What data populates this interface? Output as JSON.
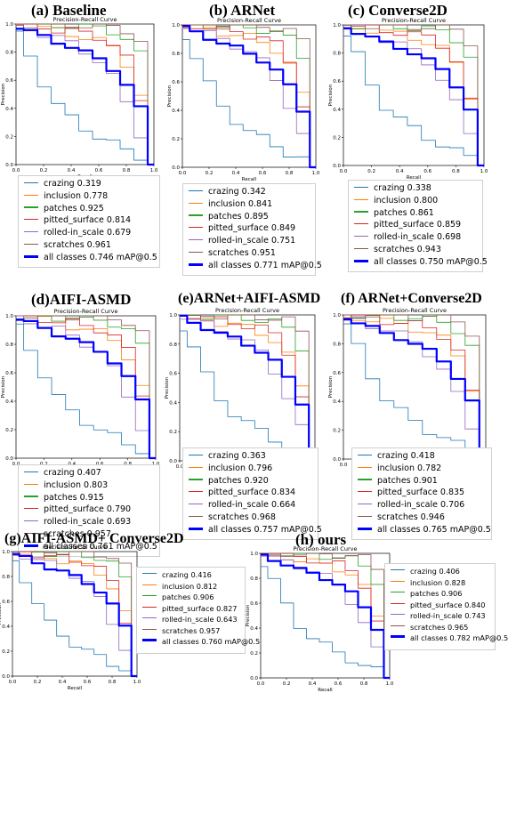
{
  "curve_title": "Precision-Recall Curve",
  "xlabel": "Recall",
  "ylabel": "Precision",
  "xticks": [
    "0.0",
    "0.2",
    "0.4",
    "0.6",
    "0.8",
    "1.0"
  ],
  "yticks": [
    "0.0",
    "0.2",
    "0.4",
    "0.6",
    "0.8",
    "1.0"
  ],
  "colors": {
    "crazing": "#1f77b4",
    "inclusion": "#ff7f0e",
    "patches": "#2ca02c",
    "pitted_surface": "#d62728",
    "rolled-in_scale": "#9467bd",
    "scratches": "#8c564b",
    "all": "#0000ff"
  },
  "panels": [
    {
      "title": "(a) Baseline",
      "legend": [
        {
          "key": "crazing",
          "label": "crazing 0.319"
        },
        {
          "key": "inclusion",
          "label": "inclusion 0.778"
        },
        {
          "key": "patches",
          "label": "patches 0.925"
        },
        {
          "key": "pitted_surface",
          "label": "pitted_surface 0.814"
        },
        {
          "key": "rolled-in_scale",
          "label": "rolled-in_scale 0.679"
        },
        {
          "key": "scratches",
          "label": "scratches 0.961"
        },
        {
          "key": "all",
          "label": "all classes 0.746 mAP@0.5"
        }
      ]
    },
    {
      "title": "(b) ARNet",
      "legend": [
        {
          "key": "crazing",
          "label": "crazing 0.342"
        },
        {
          "key": "inclusion",
          "label": "inclusion 0.841"
        },
        {
          "key": "patches",
          "label": "patches 0.895"
        },
        {
          "key": "pitted_surface",
          "label": "pitted_surface 0.849"
        },
        {
          "key": "rolled-in_scale",
          "label": "rolled-in_scale 0.751"
        },
        {
          "key": "scratches",
          "label": "scratches 0.951"
        },
        {
          "key": "all",
          "label": "all classes 0.771 mAP@0.5"
        }
      ]
    },
    {
      "title": "(c) Converse2D",
      "legend": [
        {
          "key": "crazing",
          "label": "crazing 0.338"
        },
        {
          "key": "inclusion",
          "label": "inclusion 0.800"
        },
        {
          "key": "patches",
          "label": "patches 0.861"
        },
        {
          "key": "pitted_surface",
          "label": "pitted_surface 0.859"
        },
        {
          "key": "rolled-in_scale",
          "label": "rolled-in_scale 0.698"
        },
        {
          "key": "scratches",
          "label": "scratches 0.943"
        },
        {
          "key": "all",
          "label": "all classes 0.750 mAP@0.5"
        }
      ]
    },
    {
      "title": "(d)AIFI-ASMD",
      "legend": [
        {
          "key": "crazing",
          "label": "crazing 0.407"
        },
        {
          "key": "inclusion",
          "label": "inclusion 0.803"
        },
        {
          "key": "patches",
          "label": "patches 0.915"
        },
        {
          "key": "pitted_surface",
          "label": "pitted_surface 0.790"
        },
        {
          "key": "rolled-in_scale",
          "label": "rolled-in_scale 0.693"
        },
        {
          "key": "scratches",
          "label": "scratches 0.957"
        },
        {
          "key": "all",
          "label": "all classes 0.761 mAP@0.5"
        }
      ]
    },
    {
      "title": "(e)ARNet+AIFI-ASMD",
      "legend": [
        {
          "key": "crazing",
          "label": "crazing 0.363"
        },
        {
          "key": "inclusion",
          "label": "inclusion 0.796"
        },
        {
          "key": "patches",
          "label": "patches 0.920"
        },
        {
          "key": "pitted_surface",
          "label": "pitted_surface 0.834"
        },
        {
          "key": "rolled-in_scale",
          "label": "rolled-in_scale 0.664"
        },
        {
          "key": "scratches",
          "label": "scratches 0.968"
        },
        {
          "key": "all",
          "label": "all classes 0.757 mAP@0.5"
        }
      ]
    },
    {
      "title": "(f) ARNet+Converse2D",
      "legend": [
        {
          "key": "crazing",
          "label": "crazing 0.418"
        },
        {
          "key": "inclusion",
          "label": "inclusion 0.782"
        },
        {
          "key": "patches",
          "label": "patches 0.901"
        },
        {
          "key": "pitted_surface",
          "label": "pitted_surface 0.835"
        },
        {
          "key": "rolled-in_scale",
          "label": "rolled-in_scale 0.706"
        },
        {
          "key": "scratches",
          "label": "scratches 0.946"
        },
        {
          "key": "all",
          "label": "all classes 0.765 mAP@0.5"
        }
      ]
    },
    {
      "title": "(g)AIFI-ASMD+ Converse2D",
      "legend": [
        {
          "key": "crazing",
          "label": "crazing 0.416"
        },
        {
          "key": "inclusion",
          "label": "inclusion 0.812"
        },
        {
          "key": "patches",
          "label": "patches 0.906"
        },
        {
          "key": "pitted_surface",
          "label": "pitted_surface 0.827"
        },
        {
          "key": "rolled-in_scale",
          "label": "rolled-in_scale 0.643"
        },
        {
          "key": "scratches",
          "label": "scratches 0.957"
        },
        {
          "key": "all",
          "label": "all classes 0.760 mAP@0.5"
        }
      ]
    },
    {
      "title": "(h) ours",
      "legend": [
        {
          "key": "crazing",
          "label": "crazing 0.406"
        },
        {
          "key": "inclusion",
          "label": "inclusion 0.828"
        },
        {
          "key": "patches",
          "label": "patches 0.906"
        },
        {
          "key": "pitted_surface",
          "label": "pitted_surface 0.840"
        },
        {
          "key": "rolled-in_scale",
          "label": "rolled-in_scale 0.743"
        },
        {
          "key": "scratches",
          "label": "scratches 0.965"
        },
        {
          "key": "all",
          "label": "all classes 0.782 mAP@0.5"
        }
      ]
    }
  ],
  "chart_data": {
    "type": "line",
    "description_note": "",
    "xlim": [
      0,
      1
    ],
    "ylim": [
      0,
      1
    ],
    "x": [
      0.0,
      0.1,
      0.2,
      0.3,
      0.4,
      0.5,
      0.6,
      0.7,
      0.8,
      0.9,
      1.0
    ],
    "series_shapes": [
      {
        "name": "crazing",
        "values": [
          0.92,
          0.78,
          0.58,
          0.42,
          0.33,
          0.26,
          0.2,
          0.15,
          0.1,
          0.06,
          0.0
        ]
      },
      {
        "name": "inclusion",
        "values": [
          1.0,
          0.98,
          0.97,
          0.95,
          0.93,
          0.91,
          0.88,
          0.83,
          0.72,
          0.5,
          0.0
        ]
      },
      {
        "name": "patches",
        "values": [
          1.0,
          1.0,
          1.0,
          0.99,
          0.99,
          0.98,
          0.97,
          0.95,
          0.9,
          0.78,
          0.0
        ]
      },
      {
        "name": "pitted_surface",
        "values": [
          1.0,
          1.0,
          0.98,
          0.96,
          0.95,
          0.93,
          0.91,
          0.86,
          0.75,
          0.45,
          0.0
        ]
      },
      {
        "name": "rolled-in_scale",
        "values": [
          1.0,
          0.97,
          0.93,
          0.9,
          0.86,
          0.81,
          0.74,
          0.62,
          0.44,
          0.22,
          0.0
        ]
      },
      {
        "name": "scratches",
        "values": [
          1.0,
          1.0,
          1.0,
          1.0,
          1.0,
          0.99,
          0.99,
          0.98,
          0.96,
          0.88,
          0.0
        ]
      },
      {
        "name": "all classes",
        "values": [
          0.98,
          0.95,
          0.91,
          0.87,
          0.84,
          0.8,
          0.75,
          0.68,
          0.57,
          0.4,
          0.0
        ]
      }
    ]
  }
}
